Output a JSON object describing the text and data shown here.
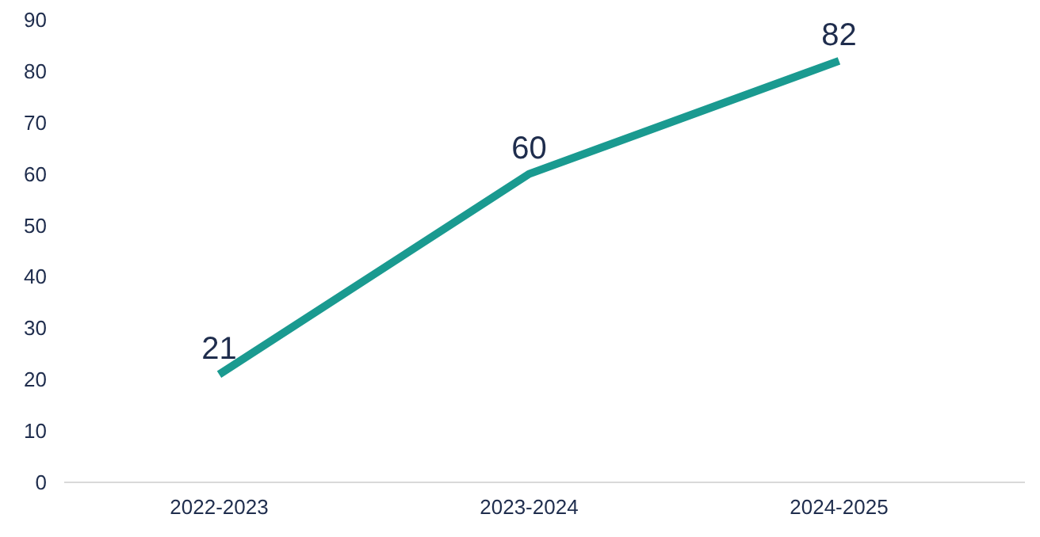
{
  "chart_data": {
    "type": "line",
    "categories": [
      "2022-2023",
      "2023-2024",
      "2024-2025"
    ],
    "series": [
      {
        "color": "#1a9a90",
        "values": [
          21,
          60,
          82
        ]
      }
    ],
    "ylim": [
      0,
      90
    ],
    "yticks": [
      0,
      10,
      20,
      30,
      40,
      50,
      60,
      70,
      80,
      90
    ],
    "grid": false,
    "data_labels": true,
    "marker": "none",
    "line_style": "solid"
  }
}
